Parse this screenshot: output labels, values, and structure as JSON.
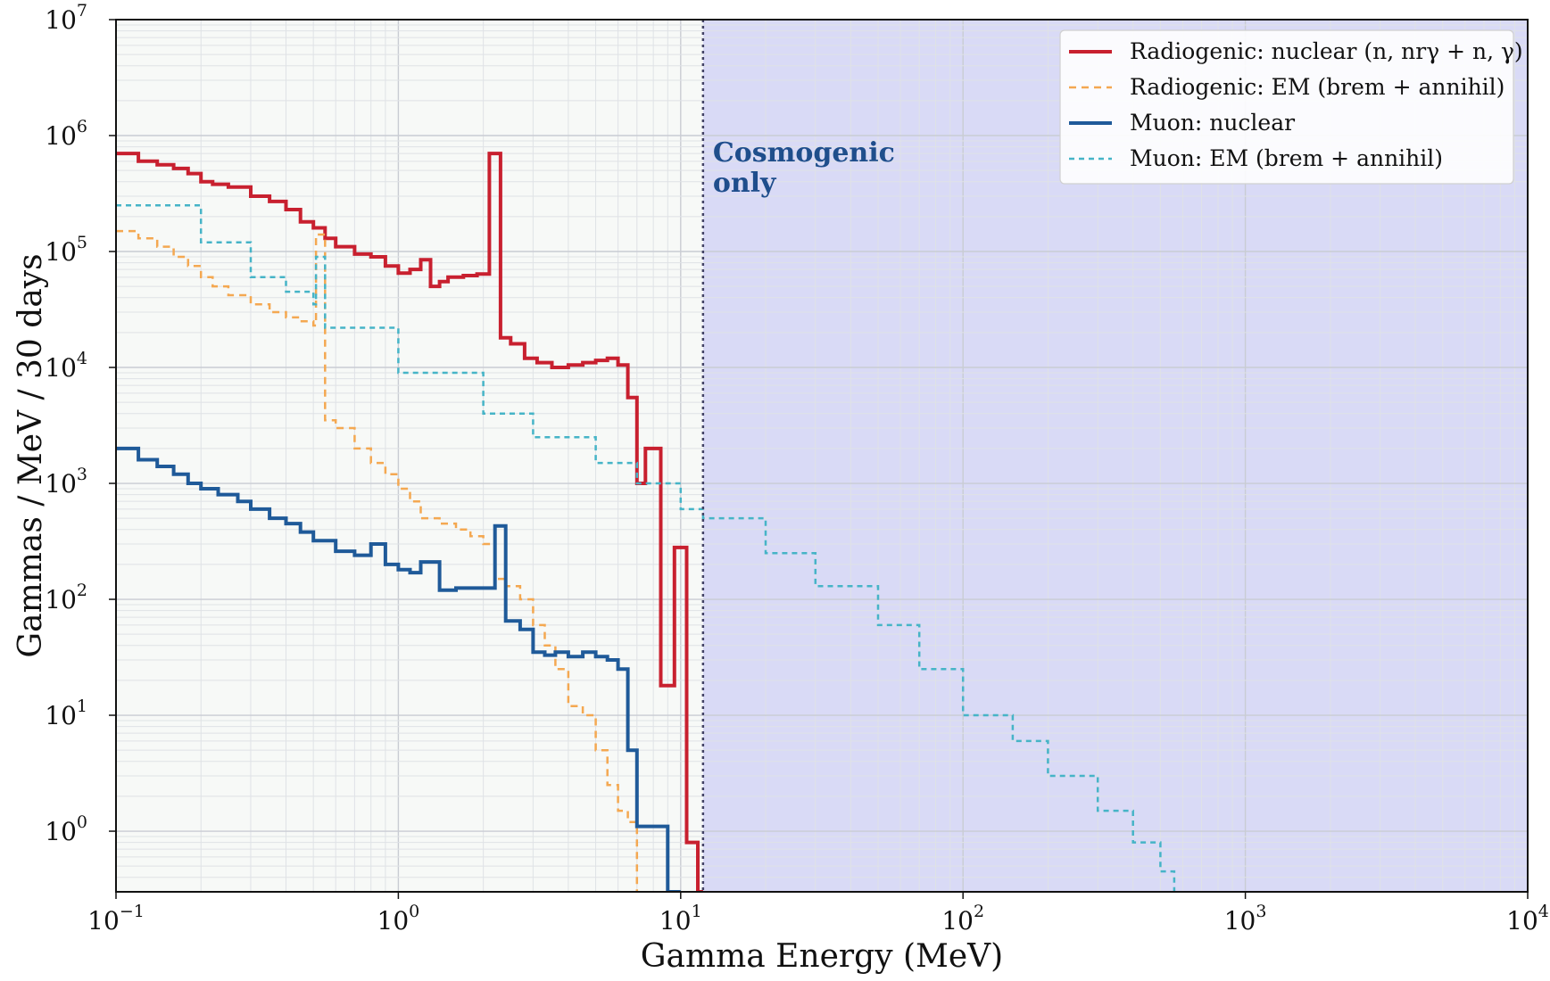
{
  "chart_data": {
    "type": "line",
    "title": "",
    "xlabel": "Gamma Energy (MeV)",
    "ylabel": "Gammas / MeV / 30 days",
    "xscale": "log",
    "yscale": "log",
    "xlim": [
      0.1,
      10000
    ],
    "ylim": [
      0.3,
      10000000
    ],
    "grid": true,
    "legend_position": "top-right",
    "x_ticks": [
      {
        "base": "10",
        "exp": "−1"
      },
      {
        "base": "10",
        "exp": "0"
      },
      {
        "base": "10",
        "exp": "1"
      },
      {
        "base": "10",
        "exp": "2"
      },
      {
        "base": "10",
        "exp": "3"
      },
      {
        "base": "10",
        "exp": "4"
      }
    ],
    "y_ticks": [
      {
        "base": "10",
        "exp": "0"
      },
      {
        "base": "10",
        "exp": "1"
      },
      {
        "base": "10",
        "exp": "2"
      },
      {
        "base": "10",
        "exp": "3"
      },
      {
        "base": "10",
        "exp": "4"
      },
      {
        "base": "10",
        "exp": "5"
      },
      {
        "base": "10",
        "exp": "6"
      },
      {
        "base": "10",
        "exp": "7"
      }
    ],
    "shaded_region": {
      "x_start": 12,
      "x_end": 10000,
      "color": "#d9daf6"
    },
    "vline": {
      "x": 12,
      "style": "dotted",
      "color": "#444466"
    },
    "annotation": {
      "line1": "Cosmogenic",
      "line2": "only",
      "x": 13,
      "y": 600000,
      "color": "#1f4e8c"
    },
    "series": [
      {
        "name": "Radiogenic: nuclear (n, nrγ + n, γ)",
        "color": "#c8202f",
        "dash": "solid",
        "width": 4,
        "x": [
          0.1,
          0.12,
          0.14,
          0.16,
          0.18,
          0.2,
          0.22,
          0.25,
          0.3,
          0.35,
          0.4,
          0.45,
          0.5,
          0.55,
          0.6,
          0.7,
          0.8,
          0.9,
          1.0,
          1.1,
          1.2,
          1.3,
          1.4,
          1.5,
          1.7,
          1.9,
          2.1,
          2.3,
          2.5,
          2.8,
          3.1,
          3.5,
          4.0,
          4.5,
          5.0,
          5.5,
          6.0,
          6.5,
          7.0,
          7.5,
          8.0,
          8.5,
          9.0,
          9.5,
          10.0,
          10.5,
          11.0,
          11.5,
          12.0
        ],
        "y": [
          700000,
          600000,
          560000,
          520000,
          470000,
          400000,
          380000,
          360000,
          300000,
          270000,
          230000,
          180000,
          160000,
          130000,
          110000,
          95000,
          90000,
          75000,
          65000,
          70000,
          85000,
          50000,
          55000,
          60000,
          62000,
          64000,
          700000,
          18000,
          16000,
          12000,
          11000,
          10000,
          10500,
          11000,
          11500,
          12000,
          10500,
          5500,
          1000,
          2000,
          2000,
          18,
          18,
          280,
          280,
          0.8,
          0.8,
          0.3,
          0.3
        ]
      },
      {
        "name": "Radiogenic: EM (brem + annihil)",
        "color": "#f4a851",
        "dash": "8,6",
        "width": 2.5,
        "x": [
          0.1,
          0.12,
          0.14,
          0.16,
          0.18,
          0.2,
          0.22,
          0.25,
          0.3,
          0.35,
          0.4,
          0.45,
          0.5,
          0.511,
          0.55,
          0.6,
          0.7,
          0.8,
          0.9,
          1.0,
          1.1,
          1.2,
          1.4,
          1.6,
          1.8,
          2.0,
          2.2,
          2.4,
          2.7,
          3.0,
          3.3,
          3.6,
          4.0,
          4.5,
          5.0,
          5.5,
          6.0,
          6.5,
          7.0
        ],
        "y": [
          150000,
          130000,
          110000,
          90000,
          75000,
          60000,
          50000,
          42000,
          35000,
          30000,
          27000,
          25000,
          23000,
          140000,
          3500,
          3000,
          2000,
          1500,
          1200,
          900,
          700,
          500,
          450,
          400,
          350,
          300,
          150,
          130,
          100,
          60,
          40,
          25,
          12,
          10,
          5,
          2.5,
          1.5,
          1.2,
          0.3
        ]
      },
      {
        "name": "Muon: nuclear",
        "color": "#1f5a99",
        "dash": "solid",
        "width": 4,
        "x": [
          0.1,
          0.12,
          0.14,
          0.16,
          0.18,
          0.2,
          0.23,
          0.27,
          0.3,
          0.35,
          0.4,
          0.45,
          0.5,
          0.6,
          0.7,
          0.8,
          0.9,
          1.0,
          1.1,
          1.2,
          1.4,
          1.6,
          1.8,
          2.0,
          2.2,
          2.4,
          2.7,
          3.0,
          3.3,
          3.6,
          4.0,
          4.5,
          5.0,
          5.5,
          6.0,
          6.5,
          7.0,
          8.0,
          9.0,
          10.0
        ],
        "y": [
          2000,
          1600,
          1400,
          1200,
          1000,
          900,
          800,
          700,
          600,
          500,
          450,
          380,
          320,
          260,
          240,
          300,
          200,
          180,
          170,
          210,
          120,
          125,
          125,
          125,
          430,
          65,
          55,
          35,
          33,
          35,
          32,
          35,
          32,
          30,
          25,
          5,
          1.1,
          1.1,
          0.3,
          0.3
        ]
      },
      {
        "name": "Muon: EM (brem + annihil)",
        "color": "#46b4c7",
        "dash": "6,5",
        "width": 2.5,
        "x": [
          0.1,
          0.2,
          0.3,
          0.4,
          0.5,
          0.511,
          0.55,
          1.0,
          2.0,
          3.0,
          5.0,
          7.0,
          10.0,
          12.0,
          20.0,
          30.0,
          50.0,
          70.0,
          100.0,
          150.0,
          200.0,
          300.0,
          400.0,
          500.0,
          560.0
        ],
        "y": [
          250000,
          120000,
          60000,
          45000,
          35000,
          90000,
          22000,
          9000,
          4000,
          2500,
          1500,
          1000,
          600,
          500,
          250,
          130,
          60,
          25,
          10,
          6,
          3,
          1.5,
          0.8,
          0.45,
          0.3
        ]
      }
    ]
  }
}
